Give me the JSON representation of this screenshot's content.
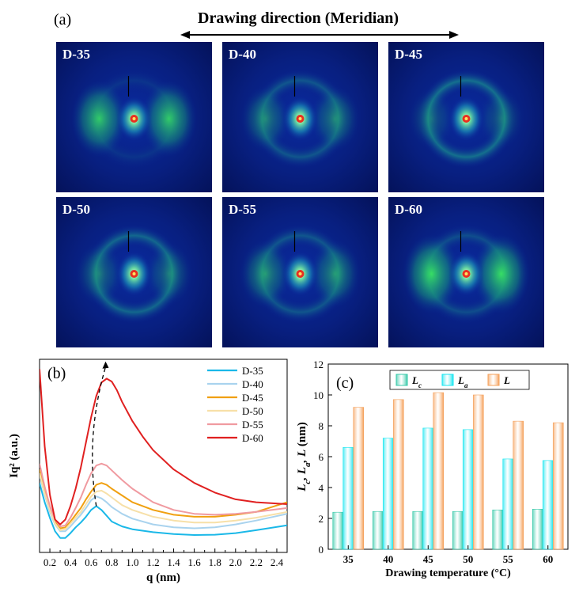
{
  "panel_a": {
    "label": "(a)",
    "title": "Drawing direction (Meridian)",
    "patterns": [
      {
        "name": "D-35",
        "lobe_strength": 0.9,
        "ring_strength": 0.2
      },
      {
        "name": "D-40",
        "lobe_strength": 0.5,
        "ring_strength": 0.6
      },
      {
        "name": "D-45",
        "lobe_strength": 0.3,
        "ring_strength": 0.9
      },
      {
        "name": "D-50",
        "lobe_strength": 0.4,
        "ring_strength": 0.8
      },
      {
        "name": "D-55",
        "lobe_strength": 0.6,
        "ring_strength": 0.6
      },
      {
        "name": "D-60",
        "lobe_strength": 1.0,
        "ring_strength": 0.5
      }
    ]
  },
  "panel_b": {
    "label": "(b)"
  },
  "panel_c": {
    "label": "(c)"
  },
  "chart_data": [
    {
      "type": "line",
      "xlabel": "q (nm)",
      "ylabel": "Iq² (a.u.)",
      "xlim": [
        0.1,
        2.5
      ],
      "ylim": [
        0,
        10
      ],
      "xticks": [
        "0.2",
        "0.4",
        "0.6",
        "0.8",
        "1.0",
        "1.2",
        "1.4",
        "1.6",
        "1.8",
        "2.0",
        "2.2",
        "2.4"
      ],
      "legend_position": "top-right",
      "grid": false,
      "series": [
        {
          "name": "D-35",
          "color": "#1ab8e8",
          "x": [
            0.1,
            0.15,
            0.2,
            0.25,
            0.3,
            0.35,
            0.4,
            0.45,
            0.5,
            0.55,
            0.6,
            0.65,
            0.7,
            0.75,
            0.8,
            0.9,
            1.0,
            1.2,
            1.4,
            1.6,
            1.8,
            2.0,
            2.2,
            2.5
          ],
          "y": [
            3.6,
            2.6,
            1.8,
            1.1,
            0.75,
            0.75,
            1.0,
            1.3,
            1.55,
            1.85,
            2.2,
            2.4,
            2.2,
            1.9,
            1.6,
            1.35,
            1.2,
            1.05,
            0.95,
            0.9,
            0.92,
            1.0,
            1.15,
            1.4
          ]
        },
        {
          "name": "D-40",
          "color": "#a9d3ee",
          "x": [
            0.1,
            0.15,
            0.2,
            0.25,
            0.3,
            0.35,
            0.4,
            0.45,
            0.5,
            0.55,
            0.6,
            0.65,
            0.7,
            0.75,
            0.8,
            0.9,
            1.0,
            1.2,
            1.4,
            1.6,
            1.8,
            2.0,
            2.2,
            2.5
          ],
          "y": [
            4.0,
            3.0,
            2.1,
            1.45,
            1.1,
            1.1,
            1.35,
            1.65,
            1.95,
            2.3,
            2.7,
            2.9,
            2.8,
            2.6,
            2.35,
            2.0,
            1.75,
            1.45,
            1.3,
            1.25,
            1.3,
            1.45,
            1.65,
            2.0
          ]
        },
        {
          "name": "D-45",
          "color": "#f0a010",
          "x": [
            0.1,
            0.15,
            0.2,
            0.25,
            0.3,
            0.35,
            0.4,
            0.45,
            0.5,
            0.55,
            0.6,
            0.65,
            0.7,
            0.75,
            0.8,
            0.9,
            1.0,
            1.2,
            1.4,
            1.6,
            1.8,
            2.0,
            2.2,
            2.5
          ],
          "y": [
            4.3,
            3.2,
            2.3,
            1.6,
            1.25,
            1.3,
            1.6,
            1.95,
            2.3,
            2.75,
            3.15,
            3.5,
            3.6,
            3.5,
            3.3,
            2.95,
            2.6,
            2.2,
            1.95,
            1.85,
            1.85,
            1.95,
            2.1,
            2.6
          ]
        },
        {
          "name": "D-50",
          "color": "#f7e0a8",
          "x": [
            0.1,
            0.15,
            0.2,
            0.25,
            0.3,
            0.35,
            0.4,
            0.45,
            0.5,
            0.55,
            0.6,
            0.65,
            0.7,
            0.75,
            0.8,
            0.9,
            1.0,
            1.2,
            1.4,
            1.6,
            1.8,
            2.0,
            2.2,
            2.5
          ],
          "y": [
            4.1,
            3.05,
            2.2,
            1.5,
            1.15,
            1.2,
            1.5,
            1.8,
            2.1,
            2.5,
            2.9,
            3.15,
            3.2,
            3.05,
            2.85,
            2.45,
            2.2,
            1.85,
            1.65,
            1.55,
            1.55,
            1.65,
            1.8,
            2.1
          ]
        },
        {
          "name": "D-55",
          "color": "#f09aa0",
          "x": [
            0.1,
            0.15,
            0.2,
            0.25,
            0.3,
            0.35,
            0.4,
            0.45,
            0.5,
            0.55,
            0.6,
            0.65,
            0.7,
            0.75,
            0.8,
            0.9,
            1.0,
            1.2,
            1.4,
            1.6,
            1.8,
            2.0,
            2.2,
            2.5
          ],
          "y": [
            4.6,
            3.4,
            2.4,
            1.7,
            1.35,
            1.4,
            1.8,
            2.3,
            2.85,
            3.5,
            4.1,
            4.5,
            4.6,
            4.5,
            4.25,
            3.75,
            3.3,
            2.6,
            2.2,
            2.0,
            1.95,
            2.0,
            2.1,
            2.3
          ]
        },
        {
          "name": "D-60",
          "color": "#e02020",
          "x": [
            0.1,
            0.15,
            0.2,
            0.25,
            0.3,
            0.35,
            0.4,
            0.45,
            0.5,
            0.55,
            0.6,
            0.65,
            0.7,
            0.75,
            0.8,
            0.85,
            0.9,
            1.0,
            1.1,
            1.2,
            1.4,
            1.6,
            1.8,
            2.0,
            2.2,
            2.5
          ],
          "y": [
            9.5,
            5.5,
            3.0,
            1.7,
            1.45,
            1.7,
            2.4,
            3.3,
            4.4,
            5.7,
            7.0,
            8.1,
            8.8,
            9.0,
            8.85,
            8.4,
            7.8,
            6.8,
            6.0,
            5.3,
            4.3,
            3.6,
            3.1,
            2.75,
            2.6,
            2.5
          ]
        }
      ]
    },
    {
      "type": "bar",
      "xlabel": "Drawing temperature (°C)",
      "ylabel": "L_c, L_a, L (nm)",
      "ylim": [
        0,
        12
      ],
      "yticks": [
        0,
        2,
        4,
        6,
        8,
        10,
        12
      ],
      "categories": [
        "35",
        "40",
        "45",
        "50",
        "55",
        "60"
      ],
      "legend_position": "top",
      "series": [
        {
          "name": "Lc",
          "name_main": "L",
          "name_sub": "c",
          "color": "#35c9a8",
          "values": [
            2.4,
            2.45,
            2.45,
            2.45,
            2.55,
            2.6
          ]
        },
        {
          "name": "La",
          "name_main": "L",
          "name_sub": "a",
          "color": "#14e6f0",
          "values": [
            6.6,
            7.2,
            7.85,
            7.75,
            5.85,
            5.75
          ]
        },
        {
          "name": "L",
          "name_main": "L",
          "name_sub": "",
          "color": "#f5a05a",
          "values": [
            9.2,
            9.7,
            10.15,
            10.0,
            8.3,
            8.2
          ]
        }
      ]
    }
  ]
}
